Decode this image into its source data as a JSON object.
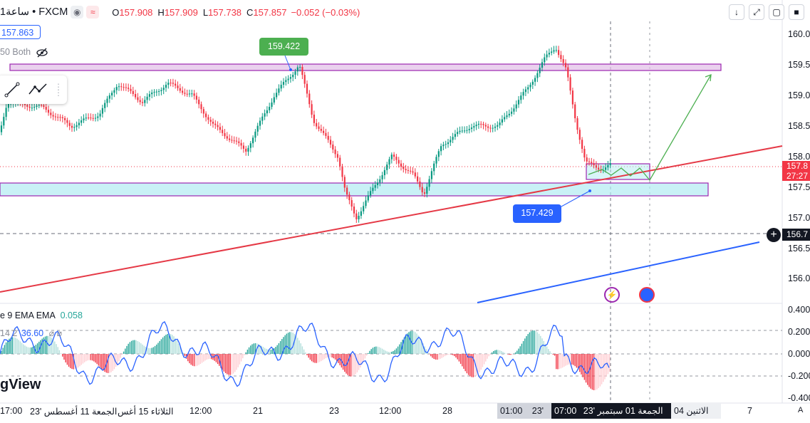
{
  "header": {
    "symbol": "ساعة1 • FXCM",
    "bullet": "•",
    "open_label": "O",
    "open": "157.908",
    "high_label": "H",
    "high": "157.909",
    "low_label": "L",
    "low": "157.738",
    "close_label": "C",
    "close": "157.857",
    "change": "−0.052 (−0.03%)"
  },
  "price_box": "157.863",
  "ma_legend": "50 Both",
  "callouts": {
    "top": "159.422",
    "bottom": "157.429"
  },
  "price_axis": [
    "160.0",
    "159.5",
    "159.0",
    "158.5",
    "158.0",
    "157.5",
    "157.0",
    "156.5",
    "156.0"
  ],
  "current_price": "157.8",
  "countdown": "27:27",
  "crosshair_price": "156.7",
  "oscillator": {
    "legend1": "e 9 EMA EMA",
    "legend1_value": "0.058",
    "legend2": "14 2",
    "legend2_value": "36.60",
    "axis": [
      "0.400",
      "0.200",
      "0.000",
      "-0.200",
      "-0.400"
    ]
  },
  "watermark": "gView",
  "time_axis": {
    "labels": [
      "17:00",
      "الجمعة 11 أغسطس '23",
      "الثلاثاء 15 أغس",
      "12:00",
      "21",
      "23",
      "12:00",
      "28",
      "01:00",
      "23'",
      "07:00",
      "الاثنين 04",
      "7"
    ],
    "highlight": "الجمعة 01 سبتمبر '23",
    "axis_btn": "A"
  },
  "colors": {
    "bull": "#089981",
    "bear": "#f23645",
    "accent": "#2962ff",
    "zone_purple": "#9c27b0"
  }
}
